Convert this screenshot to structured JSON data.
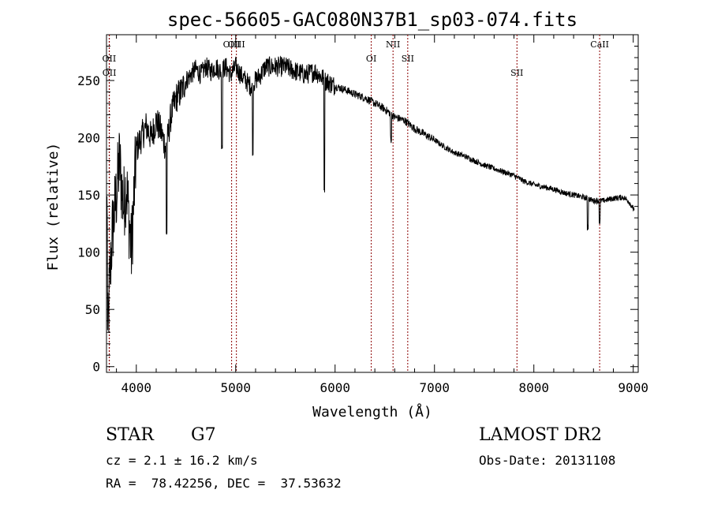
{
  "chart_data": {
    "type": "line",
    "title": "spec-56605-GAC080N37B1_sp03-074.fits",
    "xlabel": "Wavelength (Å)",
    "ylabel": "Flux (relative)",
    "xlim": [
      3700,
      9050
    ],
    "ylim": [
      -5,
      290
    ],
    "xticks": [
      4000,
      5000,
      6000,
      7000,
      8000,
      9000
    ],
    "yticks": [
      0,
      50,
      100,
      150,
      200,
      250
    ],
    "grid": false,
    "line_color": "#000000",
    "marker_color": "#8b0000",
    "lines": [
      {
        "name": "OII",
        "wavelength": 3727,
        "level": 1
      },
      {
        "name": "OII",
        "wavelength": 3729,
        "level": 2
      },
      {
        "name": "OIII",
        "wavelength": 4959,
        "level": 0
      },
      {
        "name": "OIII",
        "wavelength": 5007,
        "level": 0
      },
      {
        "name": "OI",
        "wavelength": 6364,
        "level": 1
      },
      {
        "name": "NII",
        "wavelength": 6583,
        "level": 0
      },
      {
        "name": "SII",
        "wavelength": 6731,
        "level": 1
      },
      {
        "name": "SII",
        "wavelength": 7830,
        "level": 2
      },
      {
        "name": "CaII",
        "wavelength": 8662,
        "level": 0
      }
    ],
    "anchors": [
      [
        3710,
        20
      ],
      [
        3730,
        70
      ],
      [
        3760,
        120
      ],
      [
        3800,
        150
      ],
      [
        3830,
        180
      ],
      [
        3870,
        140
      ],
      [
        3900,
        160
      ],
      [
        3950,
        100
      ],
      [
        4000,
        190
      ],
      [
        4050,
        200
      ],
      [
        4100,
        210
      ],
      [
        4150,
        200
      ],
      [
        4200,
        215
      ],
      [
        4250,
        205
      ],
      [
        4300,
        190
      ],
      [
        4350,
        220
      ],
      [
        4400,
        235
      ],
      [
        4450,
        240
      ],
      [
        4500,
        250
      ],
      [
        4550,
        255
      ],
      [
        4600,
        260
      ],
      [
        4650,
        255
      ],
      [
        4700,
        262
      ],
      [
        4750,
        258
      ],
      [
        4800,
        262
      ],
      [
        4850,
        258
      ],
      [
        4900,
        262
      ],
      [
        4950,
        255
      ],
      [
        5000,
        262
      ],
      [
        5050,
        255
      ],
      [
        5100,
        250
      ],
      [
        5150,
        245
      ],
      [
        5200,
        250
      ],
      [
        5250,
        255
      ],
      [
        5300,
        262
      ],
      [
        5400,
        262
      ],
      [
        5500,
        262
      ],
      [
        5600,
        258
      ],
      [
        5700,
        255
      ],
      [
        5800,
        258
      ],
      [
        5900,
        250
      ],
      [
        6000,
        245
      ],
      [
        6100,
        242
      ],
      [
        6200,
        238
      ],
      [
        6300,
        235
      ],
      [
        6400,
        230
      ],
      [
        6500,
        225
      ],
      [
        6600,
        218
      ],
      [
        6700,
        215
      ],
      [
        6800,
        208
      ],
      [
        6900,
        203
      ],
      [
        7000,
        198
      ],
      [
        7100,
        192
      ],
      [
        7200,
        187
      ],
      [
        7300,
        184
      ],
      [
        7400,
        180
      ],
      [
        7500,
        176
      ],
      [
        7600,
        173
      ],
      [
        7700,
        170
      ],
      [
        7800,
        167
      ],
      [
        7900,
        162
      ],
      [
        8000,
        159
      ],
      [
        8100,
        157
      ],
      [
        8200,
        155
      ],
      [
        8300,
        152
      ],
      [
        8400,
        150
      ],
      [
        8500,
        148
      ],
      [
        8600,
        145
      ],
      [
        8700,
        145
      ],
      [
        8800,
        147
      ],
      [
        8900,
        148
      ],
      [
        8950,
        145
      ],
      [
        9000,
        138
      ]
    ],
    "absorption_features": [
      {
        "x": 4305,
        "y": 112
      },
      {
        "x": 4861,
        "y": 190
      },
      {
        "x": 5172,
        "y": 180
      },
      {
        "x": 5892,
        "y": 150
      },
      {
        "x": 6563,
        "y": 195
      },
      {
        "x": 8542,
        "y": 118
      },
      {
        "x": 8662,
        "y": 122
      }
    ]
  },
  "info": {
    "object_class": "STAR",
    "subclass": "G7",
    "survey": "LAMOST DR2",
    "cz": "cz = 2.1 ± 16.2 km/s",
    "obs_date": "Obs-Date: 20131108",
    "coords": "RA =  78.42256, DEC =  37.53632"
  }
}
